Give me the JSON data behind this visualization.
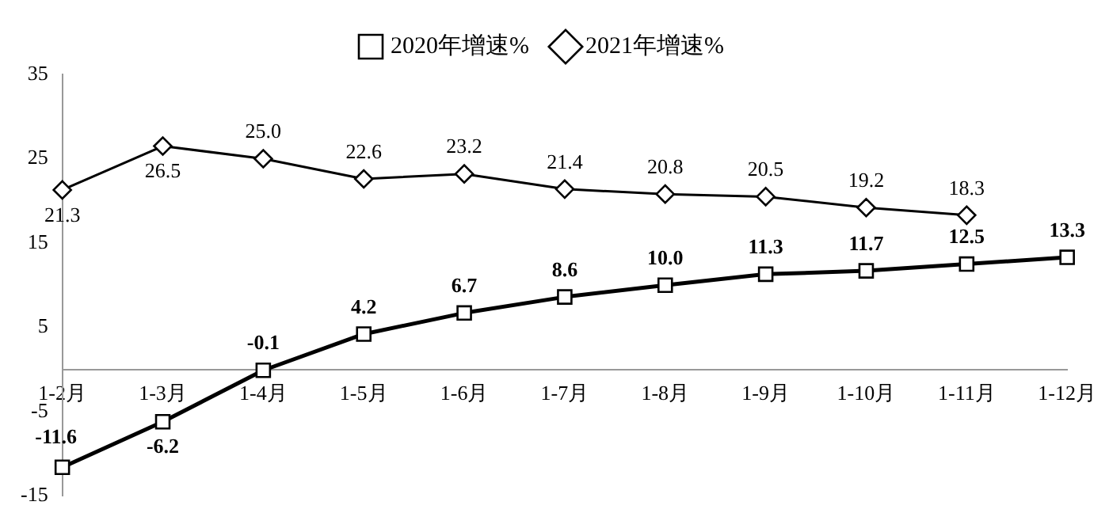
{
  "chart_data": {
    "type": "line",
    "categories": [
      "1-2月",
      "1-3月",
      "1-4月",
      "1-5月",
      "1-6月",
      "1-7月",
      "1-8月",
      "1-9月",
      "1-10月",
      "1-11月",
      "1-12月"
    ],
    "series": [
      {
        "name": "2020年增速%",
        "color": "#000000",
        "marker": "square",
        "values": [
          -11.6,
          -6.2,
          -0.1,
          4.2,
          6.7,
          8.6,
          10.0,
          11.3,
          11.7,
          12.5,
          13.3
        ],
        "value_labels": [
          "-11.6",
          "-6.2",
          "-0.1",
          "4.2",
          "6.7",
          "8.6",
          "10.0",
          "11.3",
          "11.7",
          "12.5",
          "13.3"
        ]
      },
      {
        "name": "2021年增速%",
        "color": "#000000",
        "marker": "diamond",
        "values": [
          21.3,
          26.5,
          25.0,
          22.6,
          23.2,
          21.4,
          20.8,
          20.5,
          19.2,
          18.3,
          null
        ],
        "value_labels": [
          "21.3",
          "26.5",
          "25.0",
          "22.6",
          "23.2",
          "21.4",
          "20.8",
          "20.5",
          "19.2",
          "18.3",
          null
        ]
      }
    ],
    "ylim": [
      -15,
      35
    ],
    "yticks": [
      -15,
      -5,
      5,
      15,
      25,
      35
    ],
    "grid": false,
    "legend": "top",
    "line_style": "solid"
  }
}
